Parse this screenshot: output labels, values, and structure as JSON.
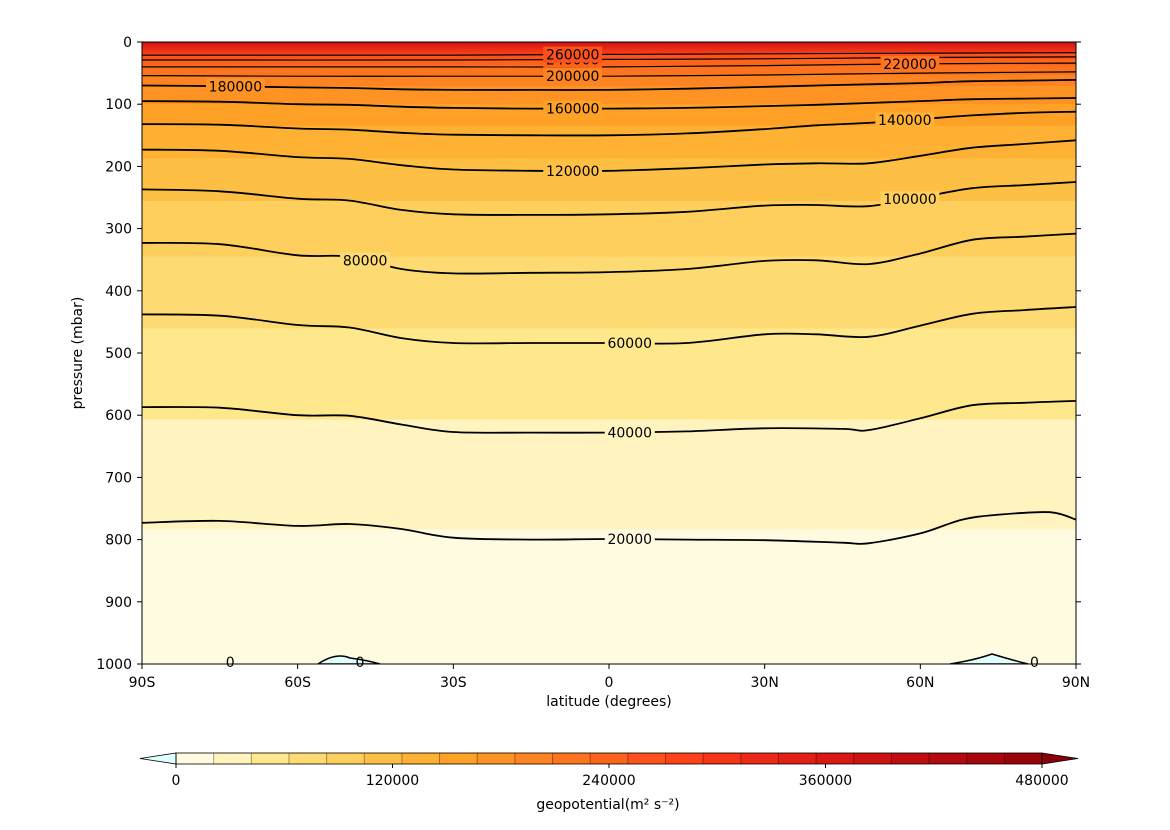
{
  "chart_data": {
    "type": "contour",
    "xlabel": "latitude (degrees)",
    "ylabel": "pressure (mbar)",
    "x_ticks": [
      "90S",
      "60S",
      "30S",
      "0",
      "30N",
      "60N",
      "90N"
    ],
    "x_tick_values": [
      -90,
      -60,
      -30,
      0,
      30,
      60,
      90
    ],
    "y_ticks": [
      "0",
      "100",
      "200",
      "300",
      "400",
      "500",
      "600",
      "700",
      "800",
      "900",
      "1000"
    ],
    "y_tick_values": [
      0,
      100,
      200,
      300,
      400,
      500,
      600,
      700,
      800,
      900,
      1000
    ],
    "xlim": [
      -90,
      90
    ],
    "ylim": [
      1000,
      0
    ],
    "y_inverted": true,
    "contour_interval": 20000,
    "contour_lines": [
      {
        "level": 0,
        "label": "0",
        "points": [
          [
            -90,
            1000
          ],
          [
            -60,
            1000
          ],
          [
            -30,
            1000
          ],
          [
            0,
            1000
          ],
          [
            30,
            1000
          ],
          [
            60,
            1000
          ],
          [
            90,
            1000
          ]
        ]
      },
      {
        "level": 20000,
        "label": "20000",
        "points": [
          [
            -90,
            773
          ],
          [
            -75,
            770
          ],
          [
            -60,
            778
          ],
          [
            -50,
            775
          ],
          [
            -40,
            783
          ],
          [
            -30,
            797
          ],
          [
            -15,
            800
          ],
          [
            0,
            799
          ],
          [
            15,
            800
          ],
          [
            30,
            801
          ],
          [
            45,
            805
          ],
          [
            50,
            806
          ],
          [
            60,
            790
          ],
          [
            68,
            768
          ],
          [
            75,
            760
          ],
          [
            85,
            756
          ],
          [
            90,
            768
          ]
        ]
      },
      {
        "level": 40000,
        "label": "40000",
        "points": [
          [
            -90,
            587
          ],
          [
            -75,
            588
          ],
          [
            -60,
            600
          ],
          [
            -50,
            601
          ],
          [
            -40,
            615
          ],
          [
            -30,
            627
          ],
          [
            -15,
            628
          ],
          [
            0,
            628
          ],
          [
            15,
            626
          ],
          [
            30,
            621
          ],
          [
            45,
            622
          ],
          [
            50,
            624
          ],
          [
            60,
            605
          ],
          [
            70,
            584
          ],
          [
            80,
            580
          ],
          [
            90,
            577
          ]
        ]
      },
      {
        "level": 60000,
        "label": "60000",
        "points": [
          [
            -90,
            438
          ],
          [
            -75,
            440
          ],
          [
            -60,
            455
          ],
          [
            -50,
            459
          ],
          [
            -40,
            476
          ],
          [
            -30,
            484
          ],
          [
            -15,
            484
          ],
          [
            0,
            484
          ],
          [
            15,
            484
          ],
          [
            30,
            470
          ],
          [
            40,
            470
          ],
          [
            50,
            474
          ],
          [
            60,
            456
          ],
          [
            70,
            437
          ],
          [
            80,
            431
          ],
          [
            90,
            426
          ]
        ]
      },
      {
        "level": 80000,
        "label": "80000",
        "points": [
          [
            -90,
            323
          ],
          [
            -75,
            325
          ],
          [
            -60,
            343
          ],
          [
            -50,
            345
          ],
          [
            -40,
            365
          ],
          [
            -30,
            372
          ],
          [
            -15,
            371
          ],
          [
            0,
            370
          ],
          [
            15,
            365
          ],
          [
            30,
            352
          ],
          [
            40,
            351
          ],
          [
            50,
            357
          ],
          [
            60,
            340
          ],
          [
            70,
            318
          ],
          [
            80,
            313
          ],
          [
            90,
            308
          ]
        ]
      },
      {
        "level": 100000,
        "label": "100000",
        "points": [
          [
            -90,
            237
          ],
          [
            -75,
            240
          ],
          [
            -60,
            252
          ],
          [
            -50,
            255
          ],
          [
            -40,
            270
          ],
          [
            -30,
            277
          ],
          [
            -15,
            278
          ],
          [
            0,
            277
          ],
          [
            15,
            273
          ],
          [
            30,
            263
          ],
          [
            40,
            262
          ],
          [
            50,
            264
          ],
          [
            60,
            250
          ],
          [
            70,
            235
          ],
          [
            80,
            230
          ],
          [
            90,
            225
          ]
        ]
      },
      {
        "level": 120000,
        "label": "120000",
        "points": [
          [
            -90,
            173
          ],
          [
            -75,
            175
          ],
          [
            -60,
            185
          ],
          [
            -50,
            188
          ],
          [
            -40,
            198
          ],
          [
            -30,
            205
          ],
          [
            -15,
            207
          ],
          [
            0,
            207
          ],
          [
            15,
            203
          ],
          [
            30,
            197
          ],
          [
            40,
            195
          ],
          [
            50,
            195
          ],
          [
            60,
            183
          ],
          [
            70,
            170
          ],
          [
            80,
            164
          ],
          [
            90,
            158
          ]
        ]
      },
      {
        "level": 140000,
        "label": "140000",
        "points": [
          [
            -90,
            132
          ],
          [
            -75,
            133
          ],
          [
            -60,
            139
          ],
          [
            -50,
            141
          ],
          [
            -40,
            146
          ],
          [
            -30,
            149
          ],
          [
            -15,
            150
          ],
          [
            0,
            150
          ],
          [
            15,
            147
          ],
          [
            30,
            140
          ],
          [
            40,
            134
          ],
          [
            50,
            130
          ],
          [
            60,
            124
          ],
          [
            70,
            118
          ],
          [
            80,
            114
          ],
          [
            90,
            112
          ]
        ]
      },
      {
        "level": 160000,
        "label": "160000",
        "points": [
          [
            -90,
            95
          ],
          [
            -75,
            96
          ],
          [
            -60,
            100
          ],
          [
            -50,
            101
          ],
          [
            -40,
            104
          ],
          [
            -30,
            106
          ],
          [
            -15,
            107
          ],
          [
            0,
            107
          ],
          [
            15,
            106
          ],
          [
            30,
            103
          ],
          [
            40,
            101
          ],
          [
            50,
            98
          ],
          [
            60,
            95
          ],
          [
            70,
            92
          ],
          [
            80,
            91
          ],
          [
            90,
            90
          ]
        ]
      },
      {
        "level": 180000,
        "label": "180000",
        "points": [
          [
            -90,
            70
          ],
          [
            -75,
            71
          ],
          [
            -60,
            73
          ],
          [
            -50,
            74
          ],
          [
            -40,
            76
          ],
          [
            -30,
            77
          ],
          [
            -15,
            77
          ],
          [
            0,
            77
          ],
          [
            15,
            75
          ],
          [
            30,
            72
          ],
          [
            40,
            70
          ],
          [
            50,
            68
          ],
          [
            60,
            66
          ],
          [
            70,
            63
          ],
          [
            80,
            62
          ],
          [
            90,
            61
          ]
        ]
      },
      {
        "level": 200000,
        "label": "200000",
        "points": [
          [
            -90,
            54
          ],
          [
            -60,
            55
          ],
          [
            -30,
            55
          ],
          [
            -15,
            55
          ],
          [
            0,
            55
          ],
          [
            30,
            53
          ],
          [
            60,
            50
          ],
          [
            90,
            48
          ]
        ]
      },
      {
        "level": 220000,
        "label": "220000",
        "points": [
          [
            -90,
            40
          ],
          [
            -60,
            40
          ],
          [
            -30,
            40
          ],
          [
            0,
            40
          ],
          [
            30,
            38
          ],
          [
            60,
            35
          ],
          [
            90,
            34
          ]
        ]
      },
      {
        "level": 240000,
        "label": "240000",
        "points": [
          [
            -90,
            29
          ],
          [
            -30,
            29
          ],
          [
            0,
            28
          ],
          [
            30,
            27
          ],
          [
            60,
            25
          ],
          [
            90,
            24
          ]
        ]
      },
      {
        "level": 260000,
        "label": "260000",
        "points": [
          [
            -90,
            21
          ],
          [
            -30,
            21
          ],
          [
            0,
            20
          ],
          [
            30,
            19
          ],
          [
            90,
            17
          ]
        ]
      }
    ],
    "colorbar": {
      "label": "geopotential(m² s⁻²)",
      "ticks": [
        "0",
        "120000",
        "240000",
        "360000",
        "480000"
      ],
      "tick_values": [
        0,
        120000,
        240000,
        360000,
        480000
      ],
      "min": -20000,
      "max": 500000,
      "step": 20000,
      "extend": "both",
      "colors": [
        "#e0ffff",
        "#fffbe0",
        "#fff4bf",
        "#fee88b",
        "#fedb72",
        "#fecf5c",
        "#fec044",
        "#feb132",
        "#fea126",
        "#fe9324",
        "#fe8421",
        "#fe741e",
        "#fe631b",
        "#fe521a",
        "#fd4119",
        "#f53418",
        "#ec2816",
        "#e31f15",
        "#d91813",
        "#cd1212",
        "#c00d10",
        "#b30a0e",
        "#a6060c",
        "#990309",
        "#8c0007"
      ]
    }
  }
}
